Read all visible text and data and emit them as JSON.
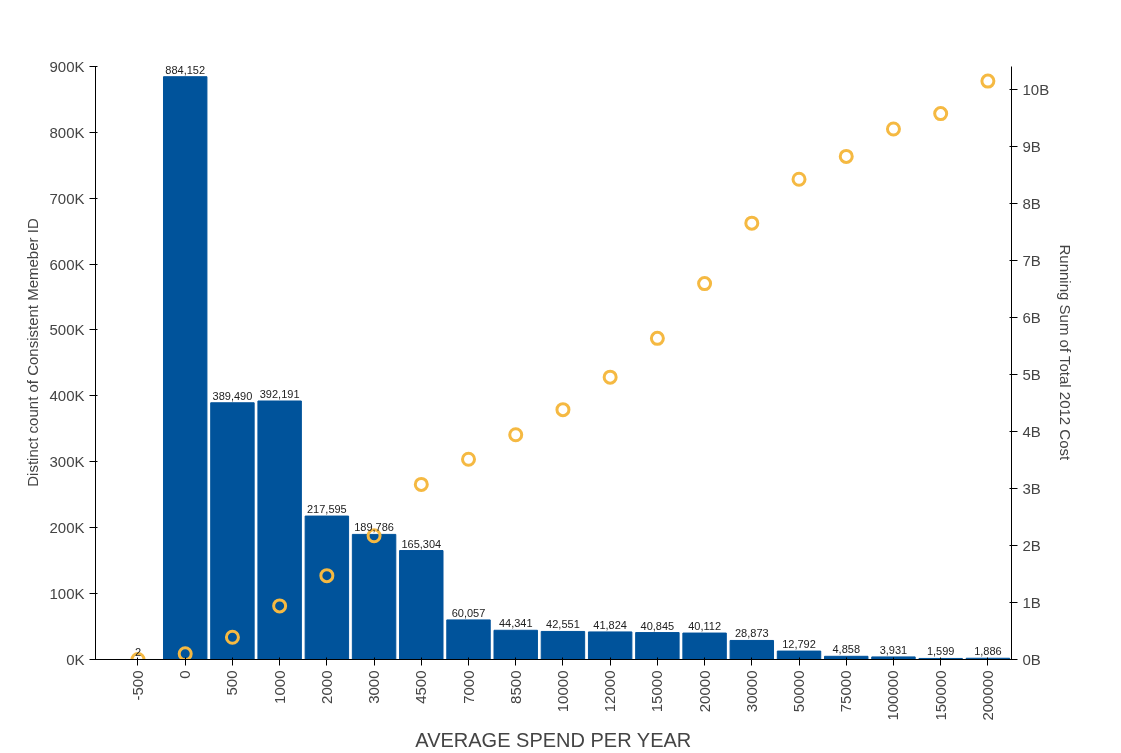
{
  "chart_data": {
    "type": "bar",
    "xlabel": "AVERAGE SPEND PER YEAR",
    "ylabel": "Distinct count of Consistent Memeber ID",
    "y2label": "Running Sum of Total 2012 Cost",
    "categories": [
      "-500",
      "0",
      "500",
      "1000",
      "2000",
      "3000",
      "4500",
      "7000",
      "8500",
      "10000",
      "12000",
      "15000",
      "20000",
      "30000",
      "50000",
      "75000",
      "100000",
      "150000",
      "200000"
    ],
    "series": [
      {
        "type": "bar",
        "color": "#00539b",
        "values": [
          2,
          884152,
          389490,
          392191,
          217595,
          189786,
          165304,
          60057,
          44341,
          42551,
          41824,
          40845,
          40112,
          28873,
          12792,
          4858,
          3931,
          1599,
          1886
        ],
        "value_labels": [
          "2",
          "884,152",
          "389,490",
          "392,191",
          "217,595",
          "189,786",
          "165,304",
          "60,057",
          "44,341",
          "42,551",
          "41,824",
          "40,845",
          "40,112",
          "28,873",
          "12,792",
          "4,858",
          "3,931",
          "1,599",
          "1,886"
        ]
      },
      {
        "type": "scatter",
        "axis": "y2",
        "color": "#f5b942",
        "values": [
          0,
          100000000,
          390000000,
          940000000,
          1470000000,
          2170000000,
          3070000000,
          3510000000,
          3940000000,
          4380000000,
          4950000000,
          5630000000,
          6590000000,
          7650000000,
          8420000000,
          8820000000,
          9300000000,
          9570000000,
          10140000000
        ]
      }
    ],
    "marker": "circle",
    "ylim": [
      0,
      900000
    ],
    "yticks": [
      {
        "value": 0,
        "label": "0K"
      },
      {
        "value": 100000,
        "label": "100K"
      },
      {
        "value": 200000,
        "label": "200K"
      },
      {
        "value": 300000,
        "label": "300K"
      },
      {
        "value": 400000,
        "label": "400K"
      },
      {
        "value": 500000,
        "label": "500K"
      },
      {
        "value": 600000,
        "label": "600K"
      },
      {
        "value": 700000,
        "label": "700K"
      },
      {
        "value": 800000,
        "label": "800K"
      },
      {
        "value": 900000,
        "label": "900K"
      }
    ],
    "y2lim": [
      0,
      10400000000
    ],
    "y2ticks": [
      {
        "value": 0,
        "label": "0B"
      },
      {
        "value": 1000000000,
        "label": "1B"
      },
      {
        "value": 2000000000,
        "label": "2B"
      },
      {
        "value": 3000000000,
        "label": "3B"
      },
      {
        "value": 4000000000,
        "label": "4B"
      },
      {
        "value": 5000000000,
        "label": "5B"
      },
      {
        "value": 6000000000,
        "label": "6B"
      },
      {
        "value": 7000000000,
        "label": "7B"
      },
      {
        "value": 8000000000,
        "label": "8B"
      },
      {
        "value": 9000000000,
        "label": "9B"
      },
      {
        "value": 10000000000,
        "label": "10B"
      }
    ],
    "grid": false
  }
}
